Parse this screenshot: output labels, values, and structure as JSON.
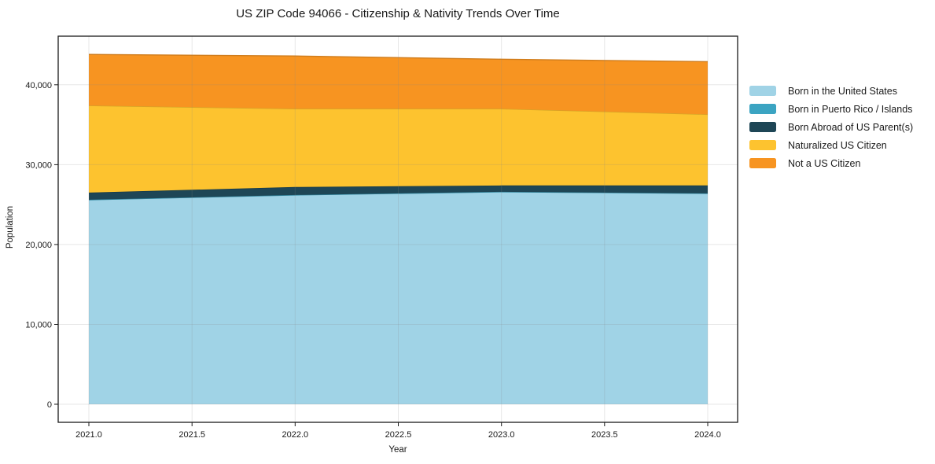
{
  "page": {
    "background": "#ffffff",
    "text_color": "#191919"
  },
  "chart_data": {
    "type": "area",
    "stacked": true,
    "title": "US ZIP Code 94066 - Citizenship & Nativity Trends Over Time",
    "xlabel": "Year",
    "ylabel": "Population",
    "x": [
      2021,
      2022,
      2023,
      2024
    ],
    "series": [
      {
        "name": "Born in the United States",
        "color": "#a0d3e6",
        "values": [
          25600,
          26200,
          26600,
          26400
        ]
      },
      {
        "name": "Born in Puerto Rico / Islands",
        "color": "#3ba4c2",
        "values": [
          0,
          0,
          0,
          0
        ]
      },
      {
        "name": "Born Abroad of US Parent(s)",
        "color": "#1e4656",
        "values": [
          900,
          1000,
          800,
          1000
        ]
      },
      {
        "name": "Naturalized US Citizen",
        "color": "#fdc32f",
        "values": [
          10900,
          9800,
          9600,
          8900
        ]
      },
      {
        "name": "Not a US Citizen",
        "color": "#f79421",
        "values": [
          6400,
          6600,
          6200,
          6600
        ]
      }
    ],
    "totals": [
      43800,
      43600,
      43200,
      42900
    ],
    "x_ticks": [
      {
        "value": 2021.0,
        "label": "2021.0"
      },
      {
        "value": 2021.5,
        "label": "2021.5"
      },
      {
        "value": 2022.0,
        "label": "2022.0"
      },
      {
        "value": 2022.5,
        "label": "2022.5"
      },
      {
        "value": 2023.0,
        "label": "2023.0"
      },
      {
        "value": 2023.5,
        "label": "2023.5"
      },
      {
        "value": 2024.0,
        "label": "2024.0"
      }
    ],
    "y_ticks": [
      {
        "value": 0,
        "label": "0"
      },
      {
        "value": 10000,
        "label": "10,000"
      },
      {
        "value": 20000,
        "label": "20,000"
      },
      {
        "value": 30000,
        "label": "30,000"
      },
      {
        "value": 40000,
        "label": "40,000"
      }
    ],
    "xlim": [
      2020.85,
      2024.15
    ],
    "ylim": [
      -2270,
      46100
    ],
    "grid": true,
    "legend_position": "right-outside"
  }
}
